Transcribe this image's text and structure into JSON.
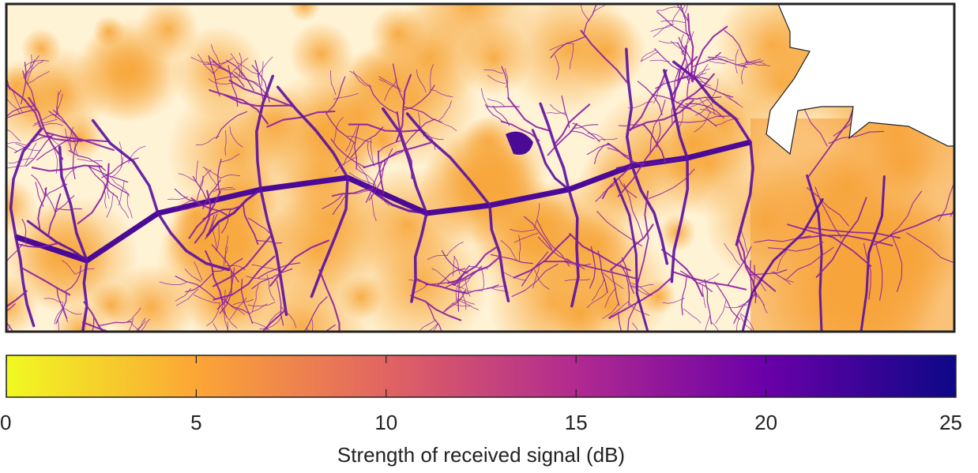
{
  "colorbar": {
    "label": "Strength of received signal (dB)",
    "lim": [
      0,
      25
    ],
    "ticks": [
      0,
      5,
      10,
      15,
      20,
      25
    ],
    "colormap": [
      "#f0f921",
      "#fca636",
      "#e16462",
      "#b12a90",
      "#6a00a8",
      "#0d0887"
    ]
  }
}
